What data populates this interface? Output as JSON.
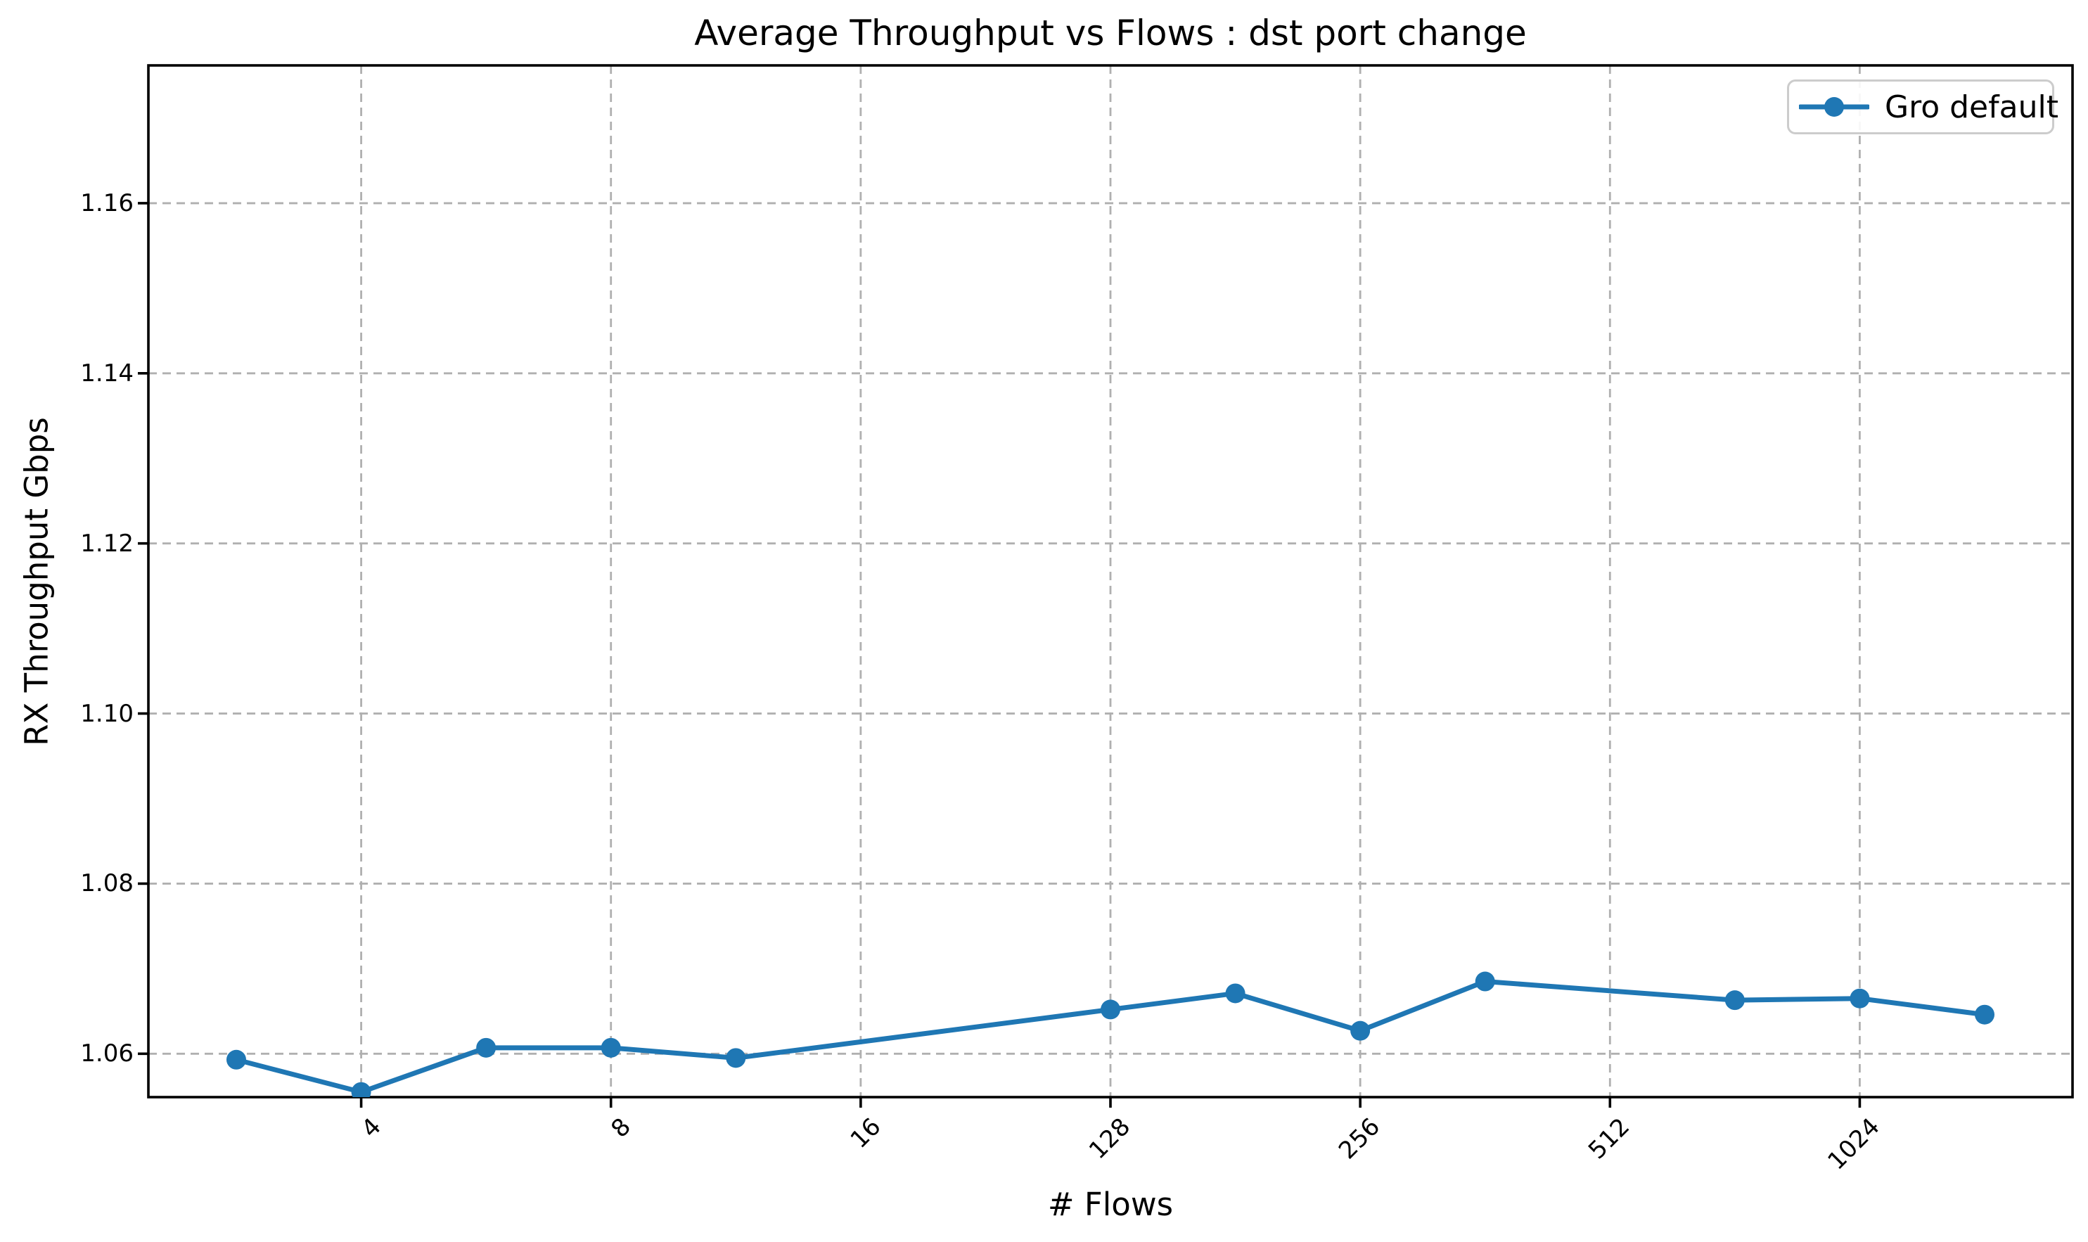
{
  "chart_data": {
    "type": "line",
    "title": "Average Throughput vs Flows : dst port change",
    "xlabel": "# Flows",
    "ylabel": "RX Throughput Gbps",
    "grid": true,
    "legend": {
      "position": "upper right",
      "entries": [
        {
          "label": "Gro default",
          "color": "#1f77b4",
          "marker": "circle"
        }
      ]
    },
    "x_axis": {
      "n_slots": 15,
      "tick_slots": [
        1,
        3,
        5,
        7,
        9,
        11,
        13
      ],
      "tick_labels": [
        "4",
        "8",
        "16",
        "128",
        "256",
        "512",
        "1024"
      ],
      "tick_rotation_deg": 45
    },
    "y_axis": {
      "ticks": [
        1.06,
        1.08,
        1.1,
        1.12,
        1.14,
        1.16
      ],
      "tick_labels": [
        "1.06",
        "1.08",
        "1.10",
        "1.12",
        "1.14",
        "1.16"
      ],
      "range": [
        1.0549,
        1.1762
      ]
    },
    "series": [
      {
        "name": "Gro default",
        "color": "#1f77b4",
        "marker": "o",
        "points": [
          {
            "slot": 0,
            "y": 1.0593
          },
          {
            "slot": 1,
            "y": 1.0555
          },
          {
            "slot": 2,
            "y": 1.0607
          },
          {
            "slot": 3,
            "y": 1.0607
          },
          {
            "slot": 4,
            "y": 1.0595
          },
          {
            "slot": 7,
            "y": 1.0652
          },
          {
            "slot": 8,
            "y": 1.0671
          },
          {
            "slot": 9,
            "y": 1.0627
          },
          {
            "slot": 10,
            "y": 1.0685
          },
          {
            "slot": 12,
            "y": 1.0663
          },
          {
            "slot": 13,
            "y": 1.0665
          },
          {
            "slot": 14,
            "y": 1.0646
          }
        ]
      }
    ],
    "colors": {
      "series": "#1f77b4",
      "grid": "#b0b0b0",
      "spine": "#000000",
      "legend_border": "#cccccc",
      "background": "#ffffff"
    }
  }
}
